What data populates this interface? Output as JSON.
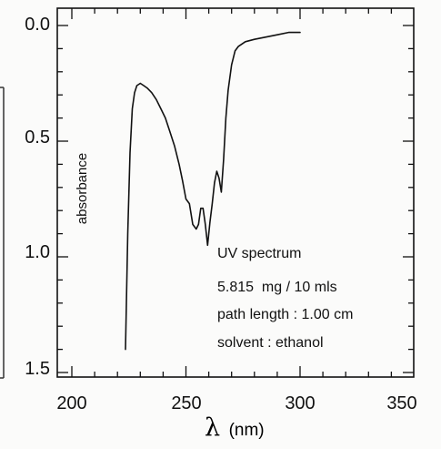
{
  "chart_data": {
    "type": "line",
    "title": "",
    "xlabel": {
      "symbol": "λ",
      "unit": "(nm)"
    },
    "ylabel": "absorbance",
    "xlim": [
      200,
      350
    ],
    "ylim": [
      0.0,
      1.5
    ],
    "y_inverted": true,
    "x_ticks": [
      "200",
      "250",
      "300",
      "350"
    ],
    "y_ticks": [
      "0.0",
      "0.5",
      "1.0",
      "1.5"
    ],
    "x_tick_values": [
      200,
      250,
      300,
      350
    ],
    "y_tick_values": [
      0.0,
      0.5,
      1.0,
      1.5
    ],
    "grid": false,
    "annotations": [
      "UV spectrum",
      "5.815  mg / 10 mls",
      "path length : 1.00 cm",
      "solvent : ethanol"
    ],
    "series": [
      {
        "x": [
          223.5,
          224.5,
          225.5,
          226.5,
          227.5,
          228.5,
          230,
          231.5,
          233,
          235,
          237,
          239,
          241,
          243,
          245,
          247,
          248.5,
          250,
          251.5,
          253,
          254.5,
          255.5,
          256.5,
          257.5,
          258.5,
          259.5,
          260.5,
          261.5,
          262.5,
          263.5,
          264.5,
          265.5,
          266.5,
          267.5,
          268.5,
          270,
          271.5,
          273,
          276,
          280,
          285,
          290,
          295,
          300
        ],
        "y": [
          1.4,
          0.9,
          0.55,
          0.36,
          0.29,
          0.26,
          0.25,
          0.26,
          0.27,
          0.29,
          0.32,
          0.36,
          0.4,
          0.46,
          0.52,
          0.6,
          0.67,
          0.75,
          0.77,
          0.86,
          0.88,
          0.86,
          0.79,
          0.79,
          0.86,
          0.95,
          0.85,
          0.77,
          0.68,
          0.63,
          0.66,
          0.72,
          0.58,
          0.4,
          0.28,
          0.17,
          0.11,
          0.09,
          0.07,
          0.06,
          0.05,
          0.04,
          0.03,
          0.03
        ]
      }
    ]
  }
}
